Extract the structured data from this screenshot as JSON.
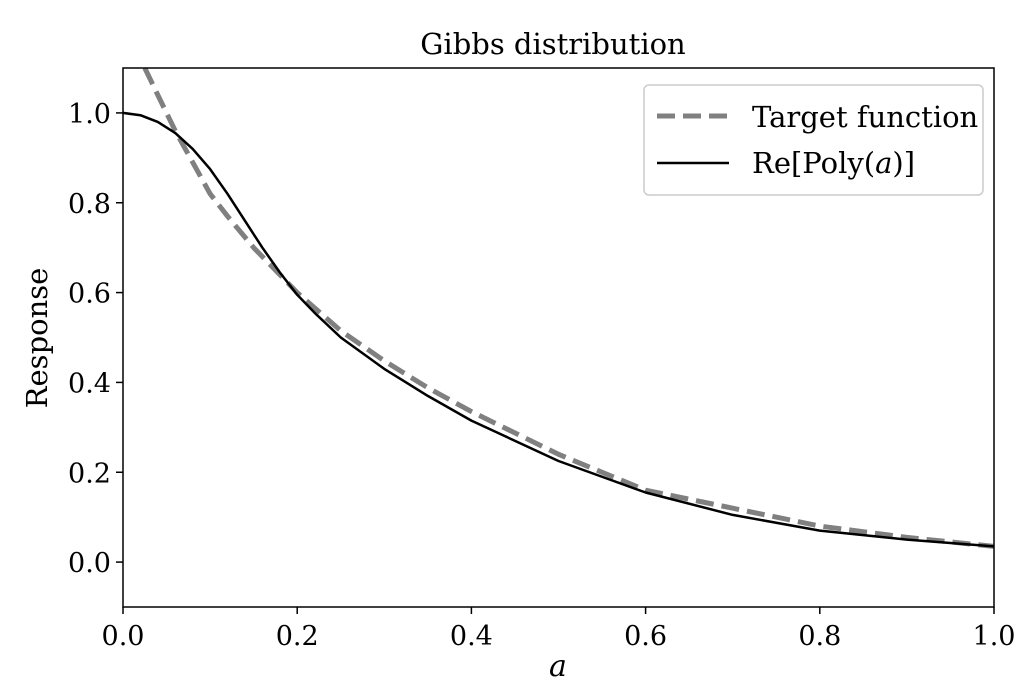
{
  "chart_data": {
    "type": "line",
    "title": "Gibbs distribution",
    "xlabel": "a",
    "ylabel": "Response",
    "xlim": [
      0.0,
      1.0
    ],
    "ylim": [
      -0.1,
      1.1
    ],
    "xticks": [
      0.0,
      0.2,
      0.4,
      0.6,
      0.8,
      1.0
    ],
    "xtick_labels": [
      "0.0",
      "0.2",
      "0.4",
      "0.6",
      "0.8",
      "1.0"
    ],
    "yticks": [
      0.0,
      0.2,
      0.4,
      0.6,
      0.8,
      1.0
    ],
    "ytick_labels": [
      "0.0",
      "0.2",
      "0.4",
      "0.6",
      "0.8",
      "1.0"
    ],
    "grid": false,
    "legend_position": "top-right",
    "series": [
      {
        "name": "Target function",
        "style": "dashed",
        "color": "#808080",
        "x": [
          0.025,
          0.04,
          0.06,
          0.08,
          0.1,
          0.12,
          0.15,
          0.2,
          0.25,
          0.3,
          0.35,
          0.4,
          0.5,
          0.6,
          0.7,
          0.8,
          0.9,
          1.0
        ],
        "y": [
          1.1,
          1.04,
          0.96,
          0.89,
          0.82,
          0.77,
          0.7,
          0.6,
          0.515,
          0.448,
          0.388,
          0.335,
          0.24,
          0.16,
          0.12,
          0.08,
          0.055,
          0.035
        ]
      },
      {
        "name": "Re[Poly(a)]",
        "name_prefix": "Re[Poly(",
        "name_var": "a",
        "name_suffix": ")]",
        "style": "solid",
        "color": "#000000",
        "x": [
          0.0,
          0.02,
          0.04,
          0.06,
          0.08,
          0.1,
          0.12,
          0.14,
          0.16,
          0.18,
          0.2,
          0.22,
          0.25,
          0.3,
          0.35,
          0.4,
          0.5,
          0.6,
          0.7,
          0.8,
          0.9,
          1.0
        ],
        "y": [
          1.0,
          0.995,
          0.98,
          0.955,
          0.92,
          0.875,
          0.82,
          0.76,
          0.7,
          0.645,
          0.595,
          0.555,
          0.5,
          0.43,
          0.37,
          0.315,
          0.225,
          0.155,
          0.105,
          0.07,
          0.05,
          0.035
        ]
      }
    ]
  }
}
